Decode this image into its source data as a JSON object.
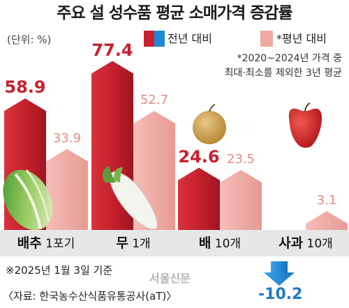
{
  "title": "주요 설 성수품 평균 소매가격 증감률",
  "unit": "(단위: %)",
  "legend": [
    {
      "label": "전년 대비",
      "colors": [
        "#c8202e",
        "#1f88d6"
      ]
    },
    {
      "label": "*평년 대비",
      "colors": [
        "#efa9a3"
      ]
    }
  ],
  "note": {
    "line1": "*2020~2024년 가격 중",
    "line2": "최대·최소를 제외한 3년 평균"
  },
  "chart_data": {
    "type": "bar",
    "categories": [
      {
        "name": "배추",
        "unit": "1포기"
      },
      {
        "name": "무",
        "unit": "1개"
      },
      {
        "name": "배",
        "unit": "10개"
      },
      {
        "name": "사과",
        "unit": "10개"
      }
    ],
    "series": [
      {
        "name": "전년 대비",
        "values": [
          58.9,
          77.4,
          24.6,
          -10.2
        ],
        "labels": [
          "58.9",
          "77.4",
          "24.6",
          "-10.2"
        ],
        "color": "#c8202e",
        "negative_color": "#1f88d6"
      },
      {
        "name": "*평년 대비",
        "values": [
          33.9,
          52.7,
          23.5,
          3.1
        ],
        "labels": [
          "33.9",
          "52.7",
          "23.5",
          "3.1"
        ],
        "color": "#efa9a3"
      }
    ],
    "ylim": [
      -12,
      80
    ],
    "grid": false,
    "legend_position": "top-right"
  },
  "footer": {
    "base_date": "※2025년 1월 3일 기준",
    "source": "〈자료: 한국농수산식품유통공사(aT)〉",
    "watermark": "서울신문"
  }
}
